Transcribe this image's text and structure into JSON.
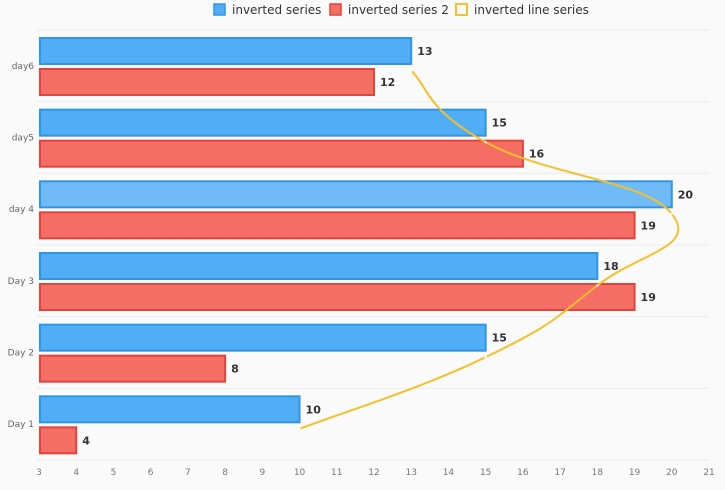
{
  "chart_data": {
    "type": "bar",
    "orientation": "horizontal",
    "title": "",
    "xlabel": "",
    "ylabel": "",
    "categories": [
      "Day 1",
      "Day 2",
      "Day 3",
      "day 4",
      "day5",
      "day6"
    ],
    "series": [
      {
        "name": "inverted series",
        "type": "bar",
        "color": "#52adf7",
        "border_color": "#2f95e6",
        "values": [
          10,
          15,
          18,
          20,
          15,
          13
        ]
      },
      {
        "name": "inverted series 2",
        "type": "bar",
        "color": "#f56e66",
        "border_color": "#e0443b",
        "values": [
          4,
          8,
          19,
          19,
          16,
          12
        ]
      },
      {
        "name": "inverted line series",
        "type": "line",
        "color": "#f5c02a",
        "values": [
          10,
          15,
          18,
          20,
          15,
          13
        ]
      }
    ],
    "xlim": [
      3,
      21
    ],
    "x_ticks": [
      3,
      4,
      5,
      6,
      7,
      8,
      9,
      10,
      11,
      12,
      13,
      14,
      15,
      16,
      17,
      18,
      19,
      20,
      21
    ],
    "grid": true,
    "legend_position": "top-center",
    "highlighted": {
      "series": 0,
      "category": 3
    }
  }
}
